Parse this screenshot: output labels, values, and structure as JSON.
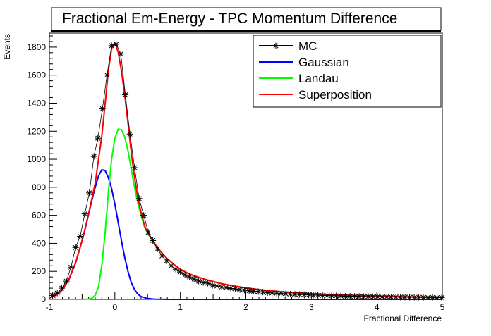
{
  "chart_data": {
    "type": "line",
    "title": "Fractional Em-Energy - TPC Momentum Difference",
    "xlabel": "Fractional Difference",
    "ylabel": "Events",
    "xlim": [
      -1,
      5
    ],
    "ylim": [
      0,
      1900
    ],
    "x_ticks": [
      -1,
      0,
      1,
      2,
      3,
      4,
      5
    ],
    "x_tick_labels": [
      "-1",
      "0",
      "1",
      "2",
      "3",
      "4",
      "5"
    ],
    "y_ticks": [
      0,
      200,
      400,
      600,
      800,
      1000,
      1200,
      1400,
      1600,
      1800
    ],
    "y_tick_labels": [
      "0",
      "200",
      "400",
      "600",
      "800",
      "1000",
      "1200",
      "1400",
      "1600",
      "1800"
    ],
    "grid": false,
    "legend_position": "top-right",
    "series": [
      {
        "name": "MC",
        "color": "#000000",
        "marker": "asterisk",
        "x": [
          -0.95,
          -0.88,
          -0.81,
          -0.74,
          -0.67,
          -0.6,
          -0.53,
          -0.46,
          -0.39,
          -0.32,
          -0.26,
          -0.19,
          -0.12,
          -0.05,
          0.02,
          0.09,
          0.16,
          0.23,
          0.3,
          0.37,
          0.44,
          0.51,
          0.58,
          0.65,
          0.72,
          0.79,
          0.86,
          0.93,
          1.0,
          1.07,
          1.14,
          1.21,
          1.28,
          1.35,
          1.42,
          1.49,
          1.56,
          1.63,
          1.7,
          1.77,
          1.84,
          1.91,
          1.98,
          2.05,
          2.12,
          2.19,
          2.26,
          2.33,
          2.4,
          2.47,
          2.54,
          2.61,
          2.68,
          2.75,
          2.82,
          2.89,
          2.96,
          3.03,
          3.1,
          3.17,
          3.24,
          3.31,
          3.38,
          3.45,
          3.52,
          3.59,
          3.66,
          3.73,
          3.8,
          3.87,
          3.94,
          4.01,
          4.08,
          4.15,
          4.22,
          4.29,
          4.36,
          4.43,
          4.5,
          4.57,
          4.64,
          4.71,
          4.78,
          4.85,
          4.92,
          4.99
        ],
        "y": [
          28,
          45,
          80,
          130,
          230,
          370,
          450,
          610,
          760,
          1020,
          1150,
          1360,
          1600,
          1810,
          1820,
          1750,
          1460,
          1180,
          940,
          720,
          600,
          480,
          420,
          360,
          310,
          275,
          240,
          215,
          195,
          175,
          160,
          145,
          130,
          120,
          115,
          100,
          95,
          88,
          85,
          78,
          75,
          70,
          66,
          62,
          58,
          55,
          52,
          48,
          45,
          44,
          42,
          40,
          38,
          36,
          35,
          34,
          32,
          30,
          30,
          28,
          27,
          26,
          25,
          24,
          23,
          22,
          22,
          21,
          20,
          20,
          19,
          19,
          18,
          18,
          17,
          17,
          16,
          16,
          15,
          15,
          15,
          14,
          14,
          14,
          13,
          13
        ]
      },
      {
        "name": "Gaussian",
        "color": "#0000ff",
        "x": [
          -1.0,
          -0.9,
          -0.8,
          -0.7,
          -0.6,
          -0.5,
          -0.45,
          -0.4,
          -0.35,
          -0.3,
          -0.25,
          -0.2,
          -0.15,
          -0.1,
          -0.05,
          0.0,
          0.05,
          0.1,
          0.15,
          0.2,
          0.25,
          0.3,
          0.35,
          0.4,
          0.5,
          0.6,
          0.7,
          0.8,
          1.0,
          1.5,
          2.0,
          3.0,
          4.0,
          5.0
        ],
        "y": [
          10,
          30,
          70,
          145,
          260,
          420,
          510,
          610,
          710,
          800,
          880,
          925,
          920,
          870,
          790,
          680,
          550,
          420,
          300,
          200,
          120,
          70,
          38,
          20,
          6,
          2,
          1,
          0,
          0,
          0,
          0,
          0,
          0,
          0
        ]
      },
      {
        "name": "Landau",
        "color": "#00ff00",
        "x": [
          -1.0,
          -0.5,
          -0.4,
          -0.35,
          -0.3,
          -0.25,
          -0.2,
          -0.15,
          -0.1,
          -0.05,
          0.0,
          0.05,
          0.1,
          0.15,
          0.2,
          0.25,
          0.3,
          0.35,
          0.4,
          0.45,
          0.5,
          0.6,
          0.7,
          0.8,
          0.9,
          1.0,
          1.1,
          1.2,
          1.4,
          1.6,
          1.8,
          2.0,
          2.3,
          2.6,
          3.0,
          3.5,
          4.0,
          4.5,
          5.0
        ],
        "y": [
          0,
          0,
          2,
          8,
          30,
          90,
          240,
          470,
          760,
          1000,
          1150,
          1215,
          1210,
          1160,
          1060,
          930,
          800,
          690,
          600,
          520,
          470,
          400,
          340,
          290,
          250,
          215,
          190,
          170,
          140,
          115,
          97,
          82,
          65,
          52,
          40,
          30,
          23,
          18,
          15
        ]
      },
      {
        "name": "Superposition",
        "color": "#ff0000",
        "x": [
          -1.0,
          -0.9,
          -0.8,
          -0.7,
          -0.6,
          -0.5,
          -0.4,
          -0.3,
          -0.2,
          -0.15,
          -0.1,
          -0.05,
          0.0,
          0.05,
          0.1,
          0.15,
          0.2,
          0.25,
          0.3,
          0.35,
          0.4,
          0.45,
          0.5,
          0.6,
          0.7,
          0.8,
          0.9,
          1.0,
          1.1,
          1.2,
          1.4,
          1.6,
          1.8,
          2.0,
          2.3,
          2.6,
          3.0,
          3.5,
          4.0,
          4.5,
          5.0
        ],
        "y": [
          10,
          30,
          70,
          145,
          260,
          420,
          612,
          830,
          1165,
          1390,
          1630,
          1790,
          1830,
          1765,
          1630,
          1460,
          1260,
          1050,
          870,
          728,
          620,
          530,
          476,
          402,
          341,
          290,
          250,
          215,
          190,
          170,
          140,
          115,
          97,
          82,
          65,
          52,
          40,
          30,
          23,
          18,
          15
        ]
      }
    ]
  }
}
